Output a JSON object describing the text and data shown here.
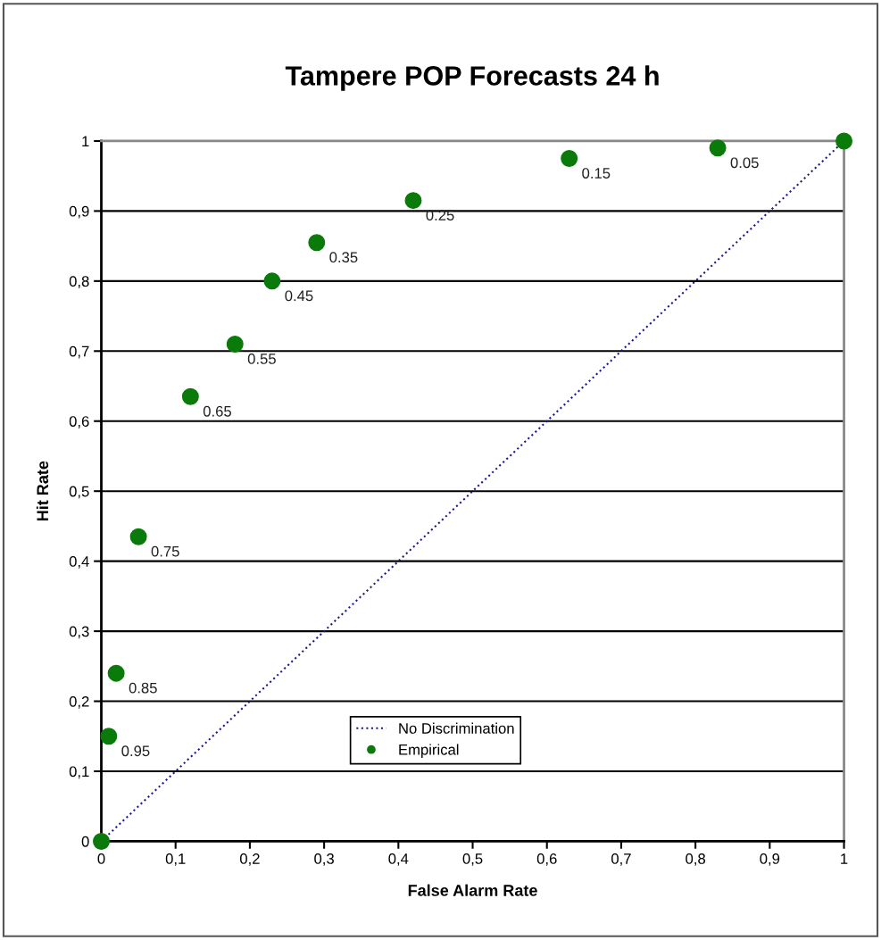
{
  "chart_data": {
    "type": "scatter",
    "title": "Tampere POP Forecasts 24 h",
    "xlabel": "False Alarm Rate",
    "ylabel": "Hit Rate",
    "series": [
      {
        "name": "No Discrimination",
        "type": "line",
        "color": "#1a1a8c",
        "line_style": "dotted",
        "marker": "none",
        "x": [
          0,
          1
        ],
        "values": [
          0,
          1
        ]
      },
      {
        "name": "Empirical",
        "color": "#0a7a0a",
        "marker": "circle",
        "x": [
          0,
          0.01,
          0.02,
          0.05,
          0.12,
          0.18,
          0.23,
          0.29,
          0.42,
          0.63,
          0.83,
          1
        ],
        "values": [
          0,
          0.15,
          0.24,
          0.435,
          0.635,
          0.71,
          0.8,
          0.855,
          0.915,
          0.975,
          0.99,
          1
        ]
      }
    ],
    "annotations": [
      {
        "text": "0.95",
        "x": 0.01,
        "y": 0.15
      },
      {
        "text": "0.85",
        "x": 0.02,
        "y": 0.24
      },
      {
        "text": "0.75",
        "x": 0.05,
        "y": 0.435
      },
      {
        "text": "0.65",
        "x": 0.12,
        "y": 0.635
      },
      {
        "text": "0.55",
        "x": 0.18,
        "y": 0.71
      },
      {
        "text": "0.45",
        "x": 0.23,
        "y": 0.8
      },
      {
        "text": "0.35",
        "x": 0.29,
        "y": 0.855
      },
      {
        "text": "0.25",
        "x": 0.42,
        "y": 0.915
      },
      {
        "text": "0.15",
        "x": 0.63,
        "y": 0.975
      },
      {
        "text": "0.05",
        "x": 0.83,
        "y": 0.99
      }
    ],
    "xlim": [
      0,
      1
    ],
    "ylim": [
      0,
      1
    ],
    "xticks": [
      0,
      {
        "value": 0.1,
        "label": "0,1"
      },
      {
        "value": 0.2,
        "label": "0,2"
      },
      {
        "value": 0.3,
        "label": "0,3"
      },
      {
        "value": 0.4,
        "label": "0,4"
      },
      {
        "value": 0.5,
        "label": "0,5"
      },
      {
        "value": 0.6,
        "label": "0,6"
      },
      {
        "value": 0.7,
        "label": "0,7"
      },
      {
        "value": 0.8,
        "label": "0,8"
      },
      {
        "value": 0.9,
        "label": "0,9"
      },
      1
    ],
    "yticks": [
      0,
      {
        "value": 0.1,
        "label": "0,1"
      },
      {
        "value": 0.2,
        "label": "0,2"
      },
      {
        "value": 0.3,
        "label": "0,3"
      },
      {
        "value": 0.4,
        "label": "0,4"
      },
      {
        "value": 0.5,
        "label": "0,5"
      },
      {
        "value": 0.6,
        "label": "0,6"
      },
      {
        "value": 0.7,
        "label": "0,7"
      },
      {
        "value": 0.8,
        "label": "0,8"
      },
      {
        "value": 0.9,
        "label": "0,9"
      },
      1
    ],
    "grid": "y",
    "legend": "bottom"
  }
}
